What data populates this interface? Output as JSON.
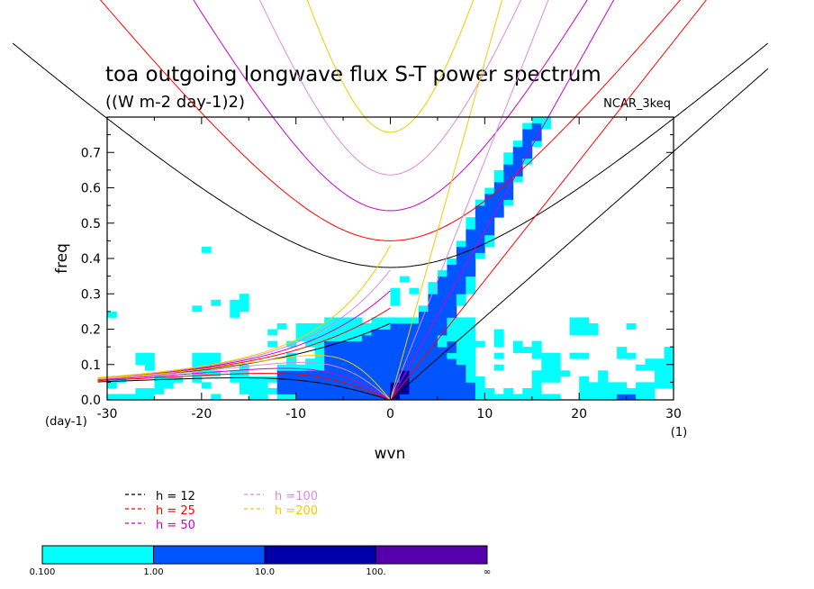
{
  "chart_data": {
    "type": "heatmap",
    "title": "toa outgoing longwave flux S-T power spectrum",
    "subtitle": "((W m-2 day-1)2)",
    "model_label": "NCAR_3keq",
    "xlabel": "wvn",
    "ylabel": "freq",
    "x_unit": "(1)",
    "y_unit": "(day-1)",
    "xlim": [
      -30,
      30
    ],
    "ylim": [
      0,
      0.8
    ],
    "x_ticks": [
      -30,
      -20,
      -10,
      0,
      10,
      20,
      30
    ],
    "x_tick_labels": [
      "-30",
      "-20",
      "-10",
      "0",
      "10",
      "20",
      "30"
    ],
    "y_ticks": [
      0,
      0.1,
      0.2,
      0.3,
      0.4,
      0.5,
      0.6,
      0.7
    ],
    "y_tick_labels": [
      "0.0",
      "0.1",
      "0.2",
      "0.3",
      "0.4",
      "0.5",
      "0.6",
      "0.7"
    ],
    "contour_levels": [
      "0.100",
      "1.00",
      "10.0",
      "100.",
      "∞"
    ],
    "contour_colors": [
      "#00ffff",
      "#0055ff",
      "#0000aa",
      "#5500aa"
    ],
    "dispersion_curves": [
      {
        "name": "h = 12",
        "h": 12,
        "color": "#000000"
      },
      {
        "name": "h = 25",
        "h": 25,
        "color": "#ff0000"
      },
      {
        "name": "h = 50",
        "h": 50,
        "color": "#cc00cc"
      },
      {
        "name": "h =100",
        "h": 100,
        "color": "#dd88dd"
      },
      {
        "name": "h =200",
        "h": 200,
        "color": "#eecc00"
      }
    ]
  }
}
